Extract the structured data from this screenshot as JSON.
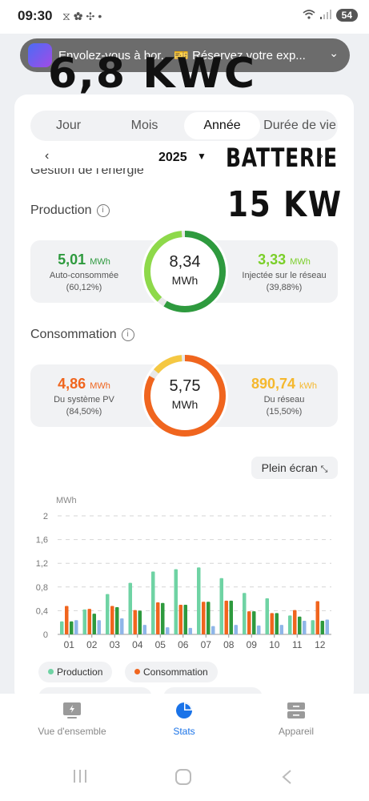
{
  "status": {
    "time": "09:30",
    "battery": "54"
  },
  "notification": {
    "text": "Envolez-vous à bor... 🎫 Réservez votre exp..."
  },
  "annotations": {
    "line1": "6,8 KWC",
    "line2": "BATTERIE",
    "line3": "15 KW"
  },
  "tabs": [
    "Jour",
    "Mois",
    "Année",
    "Durée de vie"
  ],
  "active_tab": "Année",
  "year_label": "2025",
  "partial_heading": "Gestion de l'énergie",
  "production": {
    "title": "Production",
    "left": {
      "value": "5,01",
      "unit": "MWh",
      "label": "Auto-consommée",
      "pct": "(60,12%)"
    },
    "center": {
      "value": "8,34",
      "unit": "MWh"
    },
    "right": {
      "value": "3,33",
      "unit": "MWh",
      "label": "Injectée sur le réseau",
      "pct": "(39,88%)"
    },
    "ring_fraction": 0.6012
  },
  "consumption": {
    "title": "Consommation",
    "left": {
      "value": "4,86",
      "unit": "MWh",
      "label": "Du système PV",
      "pct": "(84,50%)"
    },
    "center": {
      "value": "5,75",
      "unit": "MWh"
    },
    "right": {
      "value": "890,74",
      "unit": "kWh",
      "label": "Du réseau",
      "pct": "(15,50%)"
    },
    "ring_fraction": 0.845
  },
  "fullscreen_label": "Plein écran",
  "chart_data": {
    "type": "bar",
    "ylabel": "MWh",
    "ylim": [
      0,
      2
    ],
    "yticks": [
      "0",
      "0,4",
      "0,8",
      "1,2",
      "1,6",
      "2"
    ],
    "categories": [
      "01",
      "02",
      "03",
      "04",
      "05",
      "06",
      "07",
      "08",
      "09",
      "10",
      "11",
      "12"
    ],
    "series": [
      {
        "name": "Production",
        "color": "#6fd3a4",
        "values": [
          0.22,
          0.42,
          0.68,
          0.87,
          1.06,
          1.1,
          1.13,
          0.95,
          0.7,
          0.61,
          0.32,
          0.24
        ]
      },
      {
        "name": "Consommation",
        "color": "#f0651e",
        "values": [
          0.48,
          0.43,
          0.48,
          0.41,
          0.54,
          0.5,
          0.55,
          0.57,
          0.39,
          0.36,
          0.41,
          0.56
        ]
      },
      {
        "color": "#2e9a3e",
        "values": [
          0.22,
          0.35,
          0.46,
          0.4,
          0.53,
          0.5,
          0.55,
          0.57,
          0.39,
          0.36,
          0.3,
          0.23
        ]
      },
      {
        "color": "#8fb6e8",
        "values": [
          0.24,
          0.24,
          0.27,
          0.16,
          0.12,
          0.11,
          0.14,
          0.16,
          0.15,
          0.16,
          0.23,
          0.25
        ]
      }
    ],
    "grid": true
  },
  "legend": [
    "Production",
    "Consommation"
  ],
  "colors": {
    "green_dark": "#2e9a3e",
    "green_light": "#8ed94a",
    "orange": "#f0651e",
    "yellow": "#f5b82e",
    "accent_blue": "#1a73e8"
  },
  "nav": [
    {
      "label": "Vue d'ensemble",
      "icon": "overview-icon"
    },
    {
      "label": "Stats",
      "icon": "stats-pie-icon"
    },
    {
      "label": "Appareil",
      "icon": "device-icon"
    }
  ]
}
